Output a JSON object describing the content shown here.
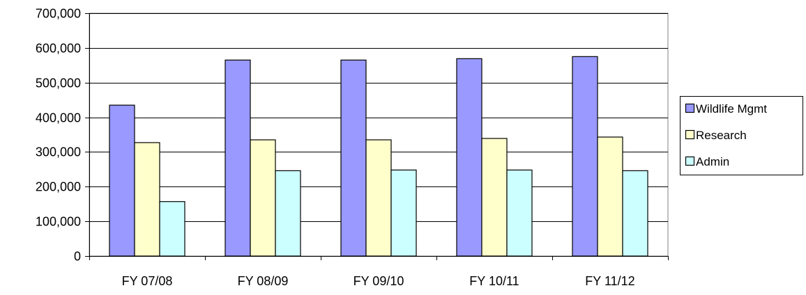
{
  "chart_data": {
    "type": "bar",
    "title": "",
    "xlabel": "",
    "ylabel": "",
    "categories": [
      "FY 07/08",
      "FY 08/09",
      "FY 09/10",
      "FY 10/11",
      "FY 11/12"
    ],
    "series": [
      {
        "name": "Wildlife Mgmt",
        "color": "#9999ff",
        "values": [
          435000,
          565000,
          565000,
          569000,
          575000
        ]
      },
      {
        "name": "Research",
        "color": "#ffffcc",
        "values": [
          327000,
          335000,
          335000,
          339000,
          343000
        ]
      },
      {
        "name": "Admin",
        "color": "#ccffff",
        "values": [
          157000,
          246000,
          248000,
          248000,
          246000
        ]
      }
    ],
    "ylim": [
      0,
      700000
    ],
    "y_ticks": [
      0,
      100000,
      200000,
      300000,
      400000,
      500000,
      600000,
      700000
    ],
    "y_tick_labels": [
      "0",
      "100,000",
      "200,000",
      "300,000",
      "400,000",
      "500,000",
      "600,000",
      "700,000"
    ],
    "grid": true,
    "legend_position": "right"
  }
}
